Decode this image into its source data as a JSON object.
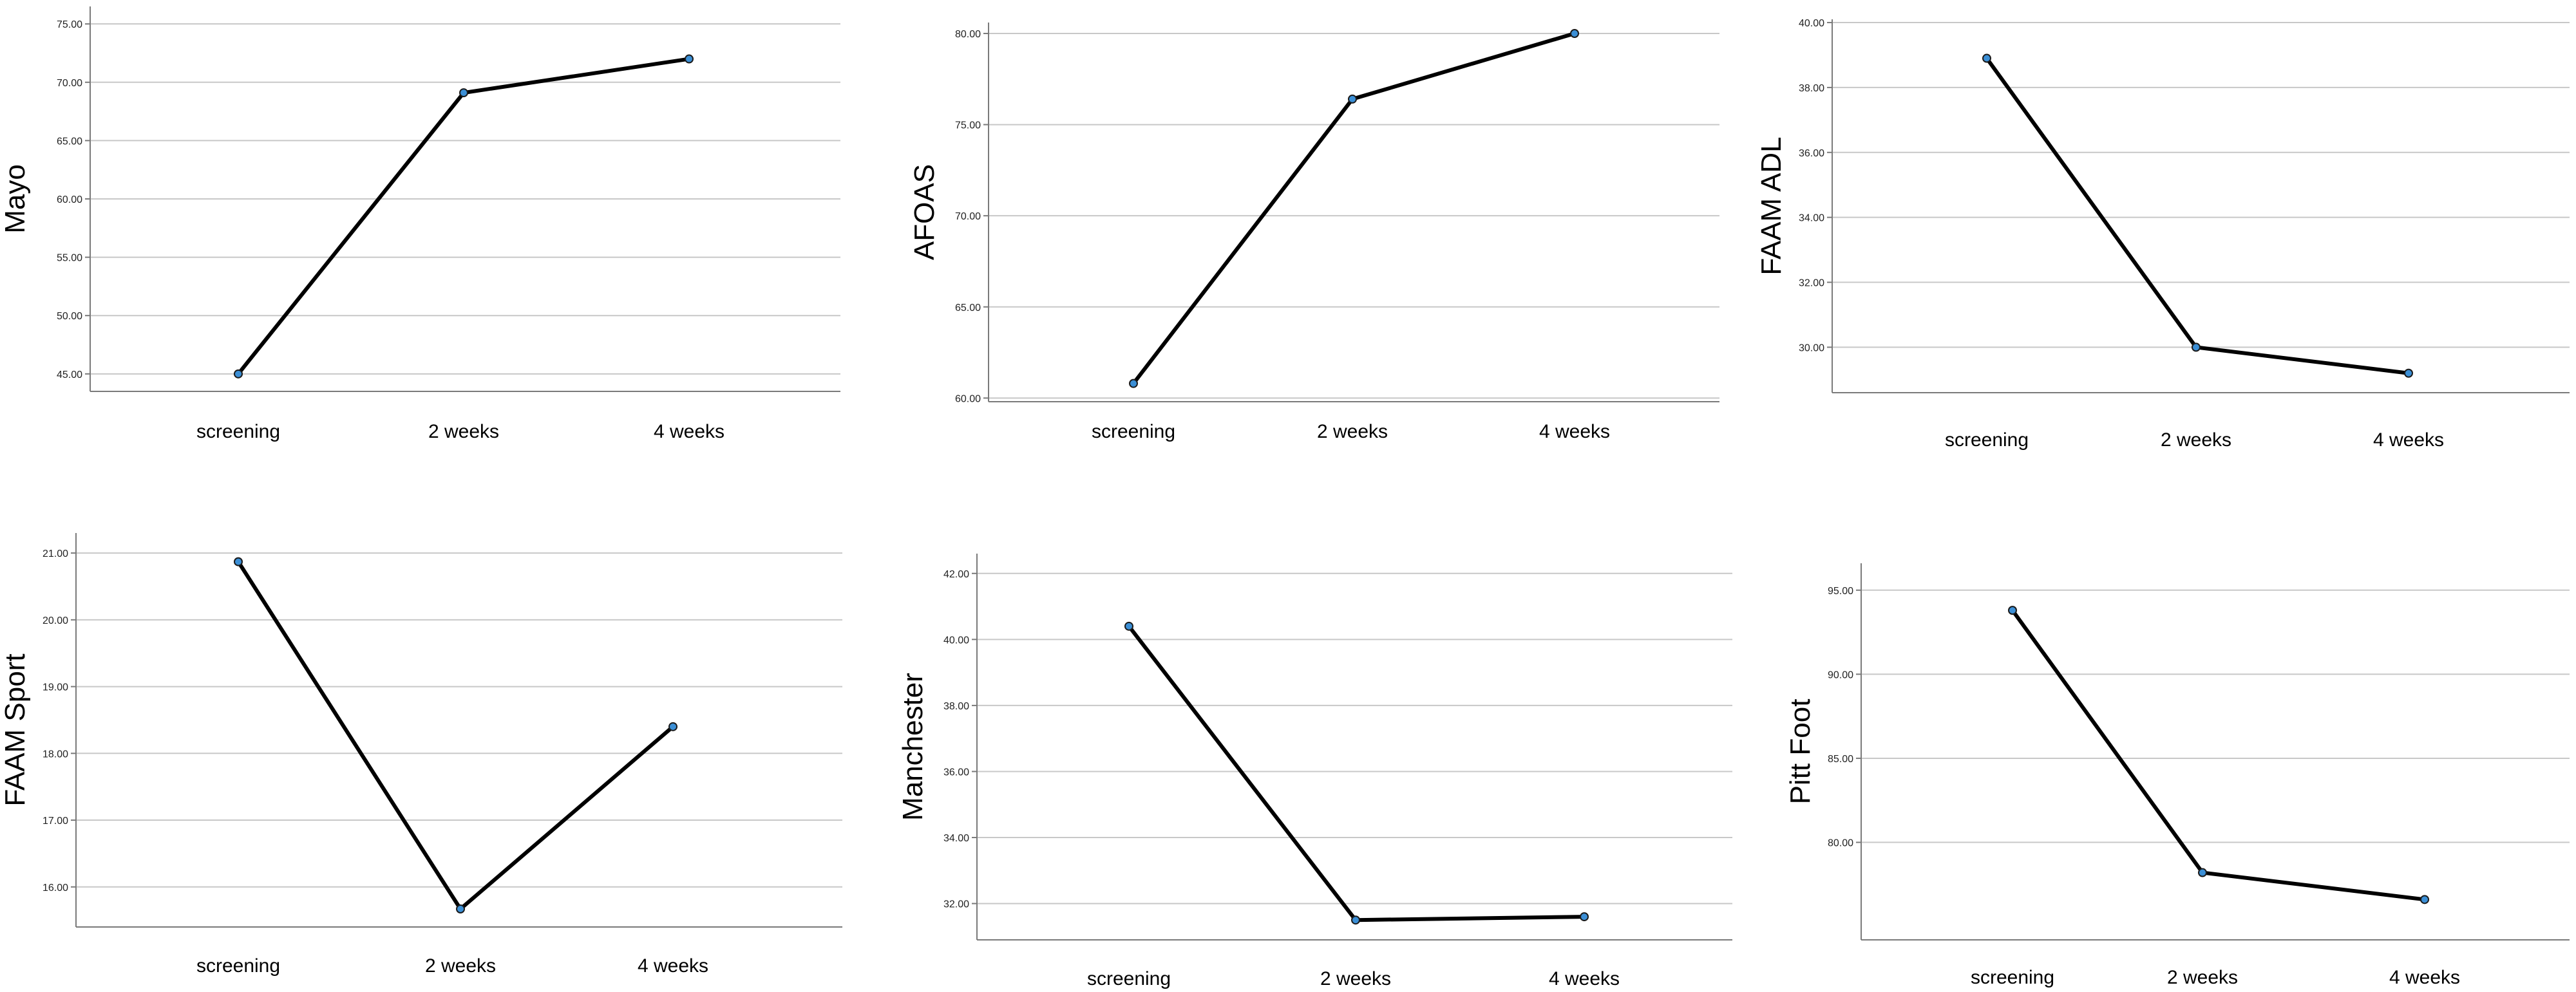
{
  "colors": {
    "line": "#000000",
    "point": "#3b8fd6",
    "grid": "#c8c8c8",
    "axis": "#7a7a7a"
  },
  "chart_data": [
    {
      "type": "line",
      "ylabel": "Mayo",
      "categories": [
        "screening",
        "2 weeks",
        "4 weeks"
      ],
      "values": [
        45.0,
        69.1,
        72.0
      ],
      "ylim": [
        43.5,
        76.5
      ],
      "yticks": [
        "45.00",
        "50.00",
        "55.00",
        "60.00",
        "65.00",
        "70.00",
        "75.00"
      ],
      "grid": true
    },
    {
      "type": "line",
      "ylabel": "AFOAS",
      "categories": [
        "screening",
        "2 weeks",
        "4 weeks"
      ],
      "values": [
        60.8,
        76.4,
        80.0
      ],
      "ylim": [
        59.8,
        80.6
      ],
      "yticks": [
        "60.00",
        "65.00",
        "70.00",
        "75.00",
        "80.00"
      ],
      "grid": true
    },
    {
      "type": "line",
      "ylabel": "FAAM ADL",
      "categories": [
        "screening",
        "2 weeks",
        "4 weeks"
      ],
      "values": [
        38.9,
        30.0,
        29.2
      ],
      "ylim": [
        28.6,
        40.1
      ],
      "yticks": [
        "30.00",
        "32.00",
        "34.00",
        "36.00",
        "38.00",
        "40.00"
      ],
      "grid": true
    },
    {
      "type": "line",
      "ylabel": "FAAM Sport",
      "categories": [
        "screening",
        "2 weeks",
        "4 weeks"
      ],
      "values": [
        20.87,
        15.67,
        18.4
      ],
      "ylim": [
        15.4,
        21.3
      ],
      "yticks": [
        "16.00",
        "17.00",
        "18.00",
        "19.00",
        "20.00",
        "21.00"
      ],
      "grid": true
    },
    {
      "type": "line",
      "ylabel": "Manchester",
      "categories": [
        "screening",
        "2 weeks",
        "4 weeks"
      ],
      "values": [
        40.4,
        31.5,
        31.6
      ],
      "ylim": [
        30.9,
        42.6
      ],
      "yticks": [
        "32.00",
        "34.00",
        "36.00",
        "38.00",
        "40.00",
        "42.00"
      ],
      "grid": true
    },
    {
      "type": "line",
      "ylabel": "Pitt Foot",
      "categories": [
        "screening",
        "2 weeks",
        "4 weeks"
      ],
      "values": [
        93.8,
        78.2,
        76.6
      ],
      "ylim": [
        74.2,
        96.6
      ],
      "yticks": [
        "80.00",
        "85.00",
        "90.00",
        "95.00"
      ],
      "grid": true
    }
  ]
}
